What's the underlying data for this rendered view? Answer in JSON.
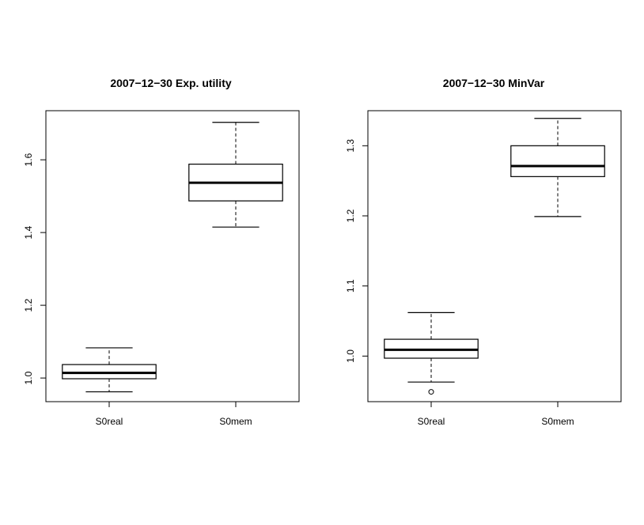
{
  "chart_data": [
    {
      "type": "box",
      "title": "2007−12−30 Exp. utility",
      "categories": [
        "S0real",
        "S0mem"
      ],
      "ylim": [
        0.935,
        1.735
      ],
      "yticks": [
        1.0,
        1.2,
        1.4,
        1.6
      ],
      "ytick_labels": [
        "1.0",
        "1.2",
        "1.4",
        "1.6"
      ],
      "boxes": [
        {
          "name": "S0real",
          "whisker_low": 0.962,
          "q1": 0.998,
          "median": 1.014,
          "q3": 1.037,
          "whisker_high": 1.083,
          "outliers": []
        },
        {
          "name": "S0mem",
          "whisker_low": 1.415,
          "q1": 1.487,
          "median": 1.537,
          "q3": 1.588,
          "whisker_high": 1.703,
          "outliers": []
        }
      ]
    },
    {
      "type": "box",
      "title": "2007−12−30 MinVar",
      "categories": [
        "S0real",
        "S0mem"
      ],
      "ylim": [
        0.935,
        1.35
      ],
      "yticks": [
        1.0,
        1.1,
        1.2,
        1.3
      ],
      "ytick_labels": [
        "1.0",
        "1.1",
        "1.2",
        "1.3"
      ],
      "boxes": [
        {
          "name": "S0real",
          "whisker_low": 0.963,
          "q1": 0.997,
          "median": 1.009,
          "q3": 1.024,
          "whisker_high": 1.062,
          "outliers": [
            0.949
          ]
        },
        {
          "name": "S0mem",
          "whisker_low": 1.199,
          "q1": 1.256,
          "median": 1.271,
          "q3": 1.3,
          "whisker_high": 1.339,
          "outliers": []
        }
      ]
    }
  ]
}
